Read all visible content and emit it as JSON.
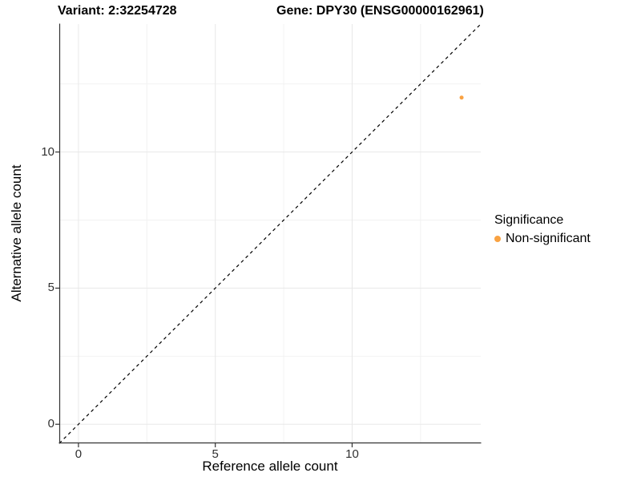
{
  "titles": {
    "variant": "Variant: 2:32254728",
    "gene": "Gene: DPY30 (ENSG00000162961)"
  },
  "legend": {
    "title": "Significance",
    "position": "right",
    "items": [
      {
        "label": "Non-significant",
        "color": "#F9A242",
        "marker": "dot-icon"
      }
    ]
  },
  "colors": {
    "background": "#FFFFFF",
    "axis_line": "#333333",
    "major_gridline": "#E8E8E8",
    "minor_gridline": "#F2F2F2",
    "tick_mark": "#333333",
    "tick_label": "#303030",
    "reference_line": "#000000",
    "point": "#F9A242"
  },
  "chart_data": {
    "type": "scatter",
    "title": "Variant: 2:32254728    Gene: DPY30 (ENSG00000162961)",
    "xlabel": "Reference allele count",
    "ylabel": "Alternative allele count",
    "xlim": [
      -0.7,
      14.7
    ],
    "ylim": [
      -0.7,
      14.7
    ],
    "x_ticks": [
      0,
      5,
      10
    ],
    "y_ticks": [
      0,
      5,
      10
    ],
    "x_minor_ticks": [
      2.5,
      7.5,
      12.5
    ],
    "y_minor_ticks": [
      2.5,
      7.5,
      12.5
    ],
    "grid": true,
    "legend_position": "right",
    "series": [
      {
        "name": "Non-significant",
        "color": "#F9A242",
        "marker": "circle",
        "marker_radius": 2.5,
        "points": [
          {
            "x": 14,
            "y": 12
          }
        ]
      }
    ],
    "reference_line": {
      "type": "identity",
      "equation": "y = x",
      "style": "dashed",
      "color": "#000000",
      "from": [
        -0.7,
        -0.7
      ],
      "to": [
        14.7,
        14.7
      ]
    }
  }
}
